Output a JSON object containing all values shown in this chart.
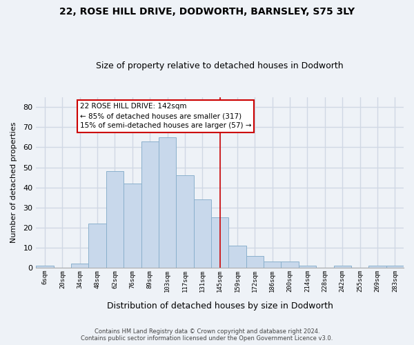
{
  "title1": "22, ROSE HILL DRIVE, DODWORTH, BARNSLEY, S75 3LY",
  "title2": "Size of property relative to detached houses in Dodworth",
  "xlabel": "Distribution of detached houses by size in Dodworth",
  "ylabel": "Number of detached properties",
  "bar_labels": [
    "6sqm",
    "20sqm",
    "34sqm",
    "48sqm",
    "62sqm",
    "76sqm",
    "89sqm",
    "103sqm",
    "117sqm",
    "131sqm",
    "145sqm",
    "159sqm",
    "172sqm",
    "186sqm",
    "200sqm",
    "214sqm",
    "228sqm",
    "242sqm",
    "255sqm",
    "269sqm",
    "283sqm"
  ],
  "bar_values": [
    1,
    0,
    2,
    22,
    48,
    42,
    63,
    65,
    46,
    34,
    25,
    11,
    6,
    3,
    3,
    1,
    0,
    1,
    0,
    1,
    1
  ],
  "bar_color": "#c8d8eb",
  "bar_edge_color": "#8ab0cc",
  "ylim": [
    0,
    85
  ],
  "yticks": [
    0,
    10,
    20,
    30,
    40,
    50,
    60,
    70,
    80
  ],
  "property_line_color": "#cc0000",
  "property_line_index": 10,
  "annotation_text": "22 ROSE HILL DRIVE: 142sqm\n← 85% of detached houses are smaller (317)\n15% of semi-detached houses are larger (57) →",
  "annotation_box_edgecolor": "#cc0000",
  "footer1": "Contains HM Land Registry data © Crown copyright and database right 2024.",
  "footer2": "Contains public sector information licensed under the Open Government Licence v3.0.",
  "background_color": "#eef2f7",
  "grid_color": "#d0d8e4"
}
